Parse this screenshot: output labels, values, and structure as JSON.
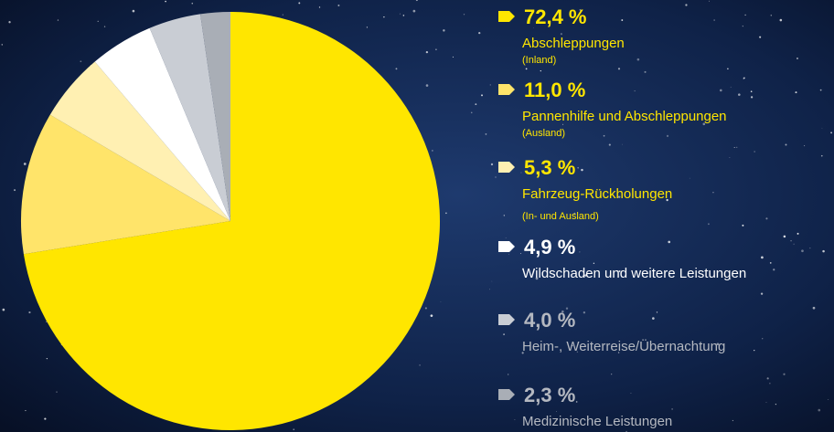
{
  "chart_data": {
    "type": "pie",
    "categories": [
      "Abschleppungen",
      "Pannenhilfe und Abschleppungen",
      "Fahrzeug-Rückholungen",
      "Wildschaden und weitere Leistungen",
      "Heim-, Weiterreise/Übernachtung",
      "Medizinische Leistungen"
    ],
    "notes": [
      "(Inland)",
      "(Ausland)",
      "(In- und Ausland)",
      null,
      null,
      null
    ],
    "values": [
      72.4,
      11.0,
      5.3,
      4.9,
      4.0,
      2.3
    ],
    "value_labels": [
      "72,4 %",
      "11,0 %",
      "5,3 %",
      "4,9 %",
      "4,0 %",
      "2,3 %"
    ],
    "colors": [
      "#ffe600",
      "#ffe46a",
      "#fff0b2",
      "#ffffff",
      "#c9cdd4",
      "#a9aeb6"
    ],
    "text_colors": [
      "#ffe600",
      "#ffe600",
      "#ffe600",
      "#ffffff",
      "#b4b8c0",
      "#b4b8c0"
    ]
  }
}
